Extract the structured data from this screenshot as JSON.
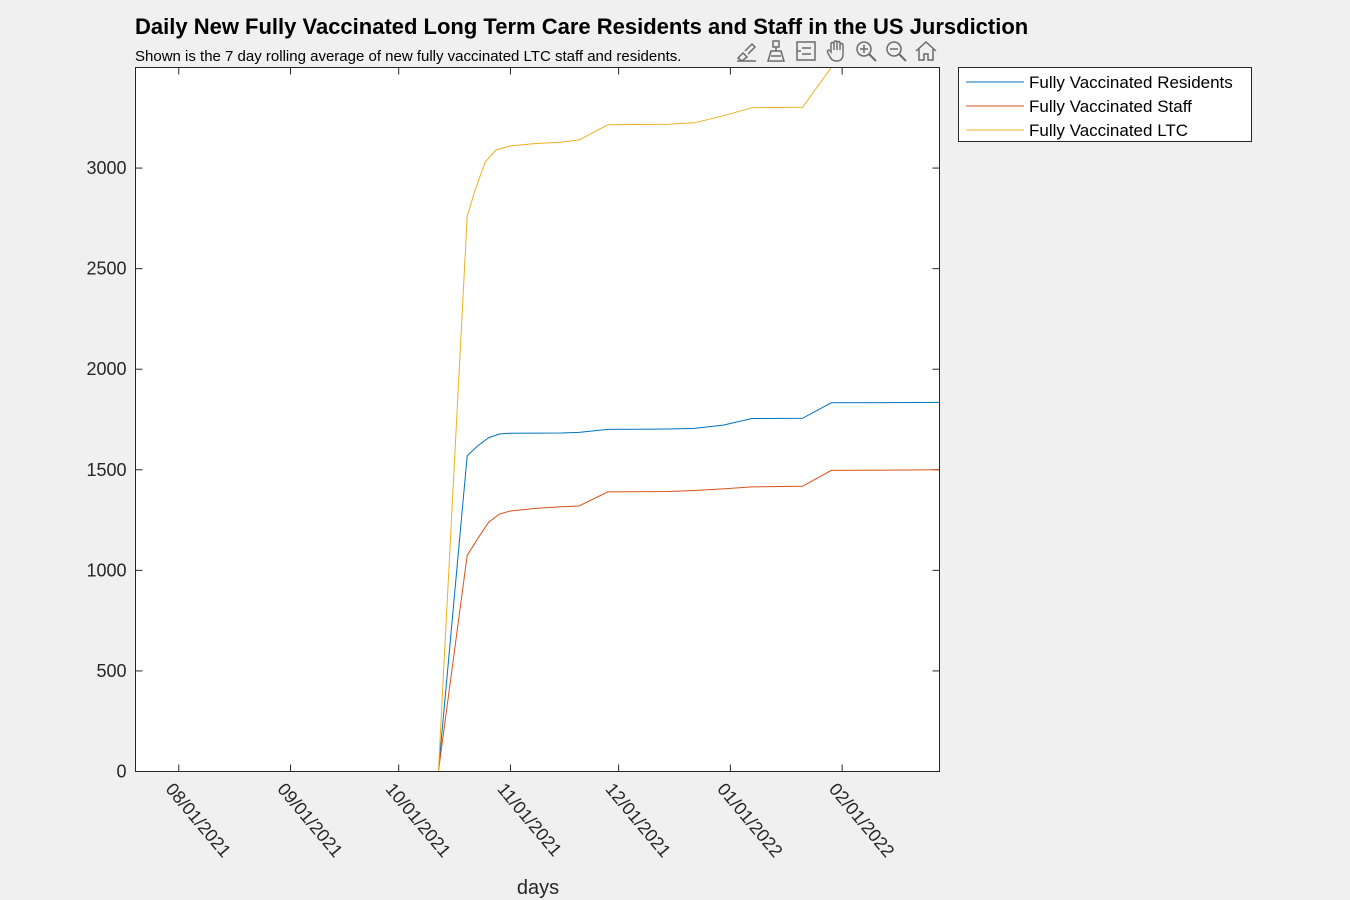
{
  "chart_data": {
    "type": "line",
    "title": "Daily New Fully Vaccinated Long Term Care Residents and Staff in the US Jursdiction",
    "subtitle": "Shown is the 7 day rolling average of new fully vaccinated LTC staff and residents.",
    "xlabel": "days",
    "ylabel": "",
    "x_type": "date",
    "xlim": [
      "2021-07-20",
      "2022-02-28"
    ],
    "ylim": [
      0,
      3500
    ],
    "yticks": [
      0,
      500,
      1000,
      1500,
      2000,
      2500,
      3000
    ],
    "xticks": [
      "2021-08-01",
      "2021-09-01",
      "2021-10-01",
      "2021-11-01",
      "2021-12-01",
      "2022-01-01",
      "2022-02-01"
    ],
    "xtick_labels": [
      "08/01/2021",
      "09/01/2021",
      "10/01/2021",
      "11/01/2021",
      "12/01/2021",
      "01/01/2022",
      "02/01/2022"
    ],
    "grid": false,
    "legend_position": "outside-top-right",
    "series": [
      {
        "name": "Fully Vaccinated Residents",
        "color": "#0072BD",
        "points": [
          [
            "2021-07-20",
            0
          ],
          [
            "2021-10-12",
            0
          ],
          [
            "2021-10-20",
            1570
          ],
          [
            "2021-10-23",
            1620
          ],
          [
            "2021-10-26",
            1660
          ],
          [
            "2021-10-29",
            1678
          ],
          [
            "2021-11-01",
            1682
          ],
          [
            "2021-11-15",
            1683
          ],
          [
            "2021-11-20",
            1686
          ],
          [
            "2021-11-28",
            1701
          ],
          [
            "2021-12-15",
            1703
          ],
          [
            "2021-12-22",
            1706
          ],
          [
            "2021-12-30",
            1722
          ],
          [
            "2022-01-07",
            1755
          ],
          [
            "2022-01-21",
            1756
          ],
          [
            "2022-01-29",
            1833
          ],
          [
            "2022-02-28",
            1835
          ]
        ]
      },
      {
        "name": "Fully Vaccinated Staff",
        "color": "#D95319",
        "points": [
          [
            "2021-07-20",
            0
          ],
          [
            "2021-10-12",
            0
          ],
          [
            "2021-10-20",
            1075
          ],
          [
            "2021-10-23",
            1160
          ],
          [
            "2021-10-26",
            1240
          ],
          [
            "2021-10-29",
            1280
          ],
          [
            "2021-11-01",
            1295
          ],
          [
            "2021-11-08",
            1308
          ],
          [
            "2021-11-15",
            1316
          ],
          [
            "2021-11-20",
            1320
          ],
          [
            "2021-11-28",
            1390
          ],
          [
            "2021-12-15",
            1392
          ],
          [
            "2021-12-22",
            1397
          ],
          [
            "2021-12-30",
            1405
          ],
          [
            "2022-01-07",
            1415
          ],
          [
            "2022-01-21",
            1418
          ],
          [
            "2022-01-29",
            1497
          ],
          [
            "2022-02-28",
            1500
          ]
        ]
      },
      {
        "name": "Fully Vaccinated LTC",
        "color": "#EDB120",
        "points": [
          [
            "2021-07-20",
            0
          ],
          [
            "2021-10-12",
            0
          ],
          [
            "2021-10-20",
            2760
          ],
          [
            "2021-10-22",
            2880
          ],
          [
            "2021-10-25",
            3030
          ],
          [
            "2021-10-28",
            3090
          ],
          [
            "2021-11-01",
            3110
          ],
          [
            "2021-11-08",
            3122
          ],
          [
            "2021-11-15",
            3128
          ],
          [
            "2021-11-20",
            3140
          ],
          [
            "2021-11-28",
            3215
          ],
          [
            "2021-12-15",
            3218
          ],
          [
            "2021-12-22",
            3225
          ],
          [
            "2021-12-30",
            3260
          ],
          [
            "2022-01-07",
            3300
          ],
          [
            "2022-01-21",
            3302
          ],
          [
            "2022-01-29",
            3500
          ],
          [
            "2022-02-28",
            3500
          ]
        ]
      }
    ]
  },
  "toolbar": {
    "icons": [
      "brush-icon",
      "data-tip-icon",
      "datatip-list-icon",
      "pan-icon",
      "zoom-in-icon",
      "zoom-out-icon",
      "home-icon"
    ]
  }
}
